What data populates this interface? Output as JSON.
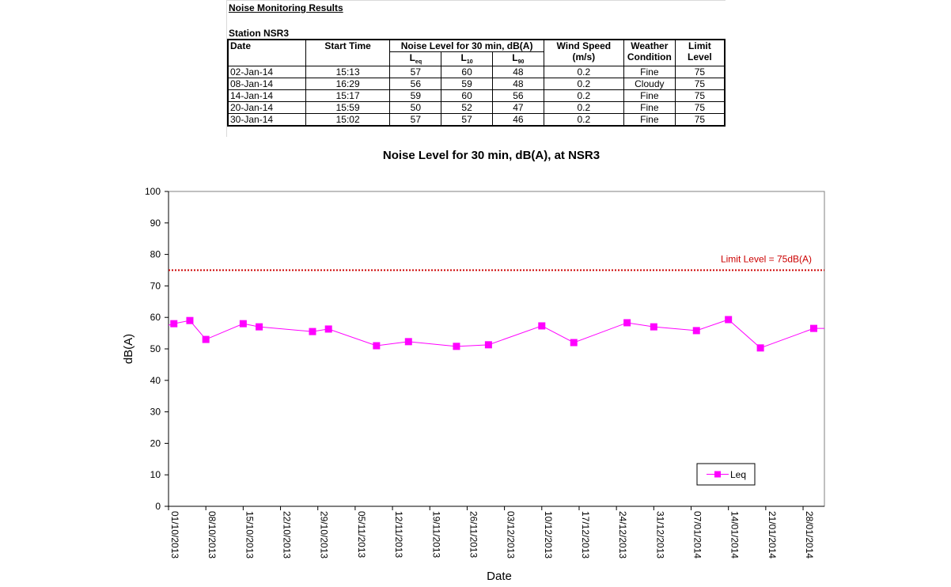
{
  "sheet": {
    "title": "Noise Monitoring Results",
    "station": "Station NSR3",
    "headers": {
      "date": "Date",
      "start_time": "Start Time",
      "noise_group": "Noise Level for 30 min, dB(A)",
      "leq": "L",
      "leq_sub": "eq",
      "l10": "L",
      "l10_sub": "10",
      "l90": "L",
      "l90_sub": "90",
      "wind_speed": "Wind Speed",
      "wind_unit": "(m/s)",
      "weather": "Weather",
      "weather2": "Condition",
      "limit": "Limit",
      "limit2": "Level"
    },
    "rows": [
      {
        "date": "02-Jan-14",
        "time": "15:13",
        "leq": "57",
        "l10": "60",
        "l90": "48",
        "wind": "0.2",
        "weather": "Fine",
        "limit": "75"
      },
      {
        "date": "08-Jan-14",
        "time": "16:29",
        "leq": "56",
        "l10": "59",
        "l90": "48",
        "wind": "0.2",
        "weather": "Cloudy",
        "limit": "75"
      },
      {
        "date": "14-Jan-14",
        "time": "15:17",
        "leq": "59",
        "l10": "60",
        "l90": "56",
        "wind": "0.2",
        "weather": "Fine",
        "limit": "75"
      },
      {
        "date": "20-Jan-14",
        "time": "15:59",
        "leq": "50",
        "l10": "52",
        "l90": "47",
        "wind": "0.2",
        "weather": "Fine",
        "limit": "75"
      },
      {
        "date": "30-Jan-14",
        "time": "15:02",
        "leq": "57",
        "l10": "57",
        "l90": "46",
        "wind": "0.2",
        "weather": "Fine",
        "limit": "75"
      }
    ]
  },
  "chart_data": {
    "type": "line",
    "title": "Noise Level for 30 min, dB(A), at NSR3",
    "xlabel": "Date",
    "ylabel": "dB(A)",
    "ylim": [
      0,
      100
    ],
    "yticks": [
      0,
      10,
      20,
      30,
      40,
      50,
      60,
      70,
      80,
      90,
      100
    ],
    "xlim": [
      "2013-10-01",
      "2014-02-01"
    ],
    "xtick_labels": [
      "01/10/2013",
      "08/10/2013",
      "15/10/2013",
      "22/10/2013",
      "29/10/2013",
      "05/11/2013",
      "12/11/2013",
      "19/11/2013",
      "26/11/2013",
      "03/12/2013",
      "10/12/2013",
      "17/12/2013",
      "24/12/2013",
      "31/12/2013",
      "07/01/2014",
      "14/01/2014",
      "21/01/2014",
      "28/01/2014"
    ],
    "grid": false,
    "legend": "bottom-right",
    "series": [
      {
        "name": "Leq",
        "color": "#ff00ff",
        "x": [
          "2013-10-02",
          "2013-10-05",
          "2013-10-08",
          "2013-10-15",
          "2013-10-18",
          "2013-10-28",
          "2013-10-31",
          "2013-11-09",
          "2013-11-15",
          "2013-11-24",
          "2013-11-30",
          "2013-12-10",
          "2013-12-16",
          "2013-12-26",
          "2013-12-31",
          "2014-01-08",
          "2014-01-14",
          "2014-01-20",
          "2014-01-30"
        ],
        "y": [
          58,
          59,
          53,
          58,
          57,
          55.5,
          56.3,
          51,
          52.3,
          50.8,
          51.3,
          57.3,
          52,
          58.3,
          57,
          55.8,
          59.3,
          50.3,
          56.5
        ],
        "line_starts_at": "2013-10-01",
        "line_start_y": 57.5,
        "line_ends_at": "2014-02-01",
        "line_end_y": 56.5
      }
    ],
    "limit_line": {
      "value": 75,
      "label": "Limit Level  = 75dB(A)",
      "color": "#cc0000",
      "style": "dotted"
    }
  }
}
